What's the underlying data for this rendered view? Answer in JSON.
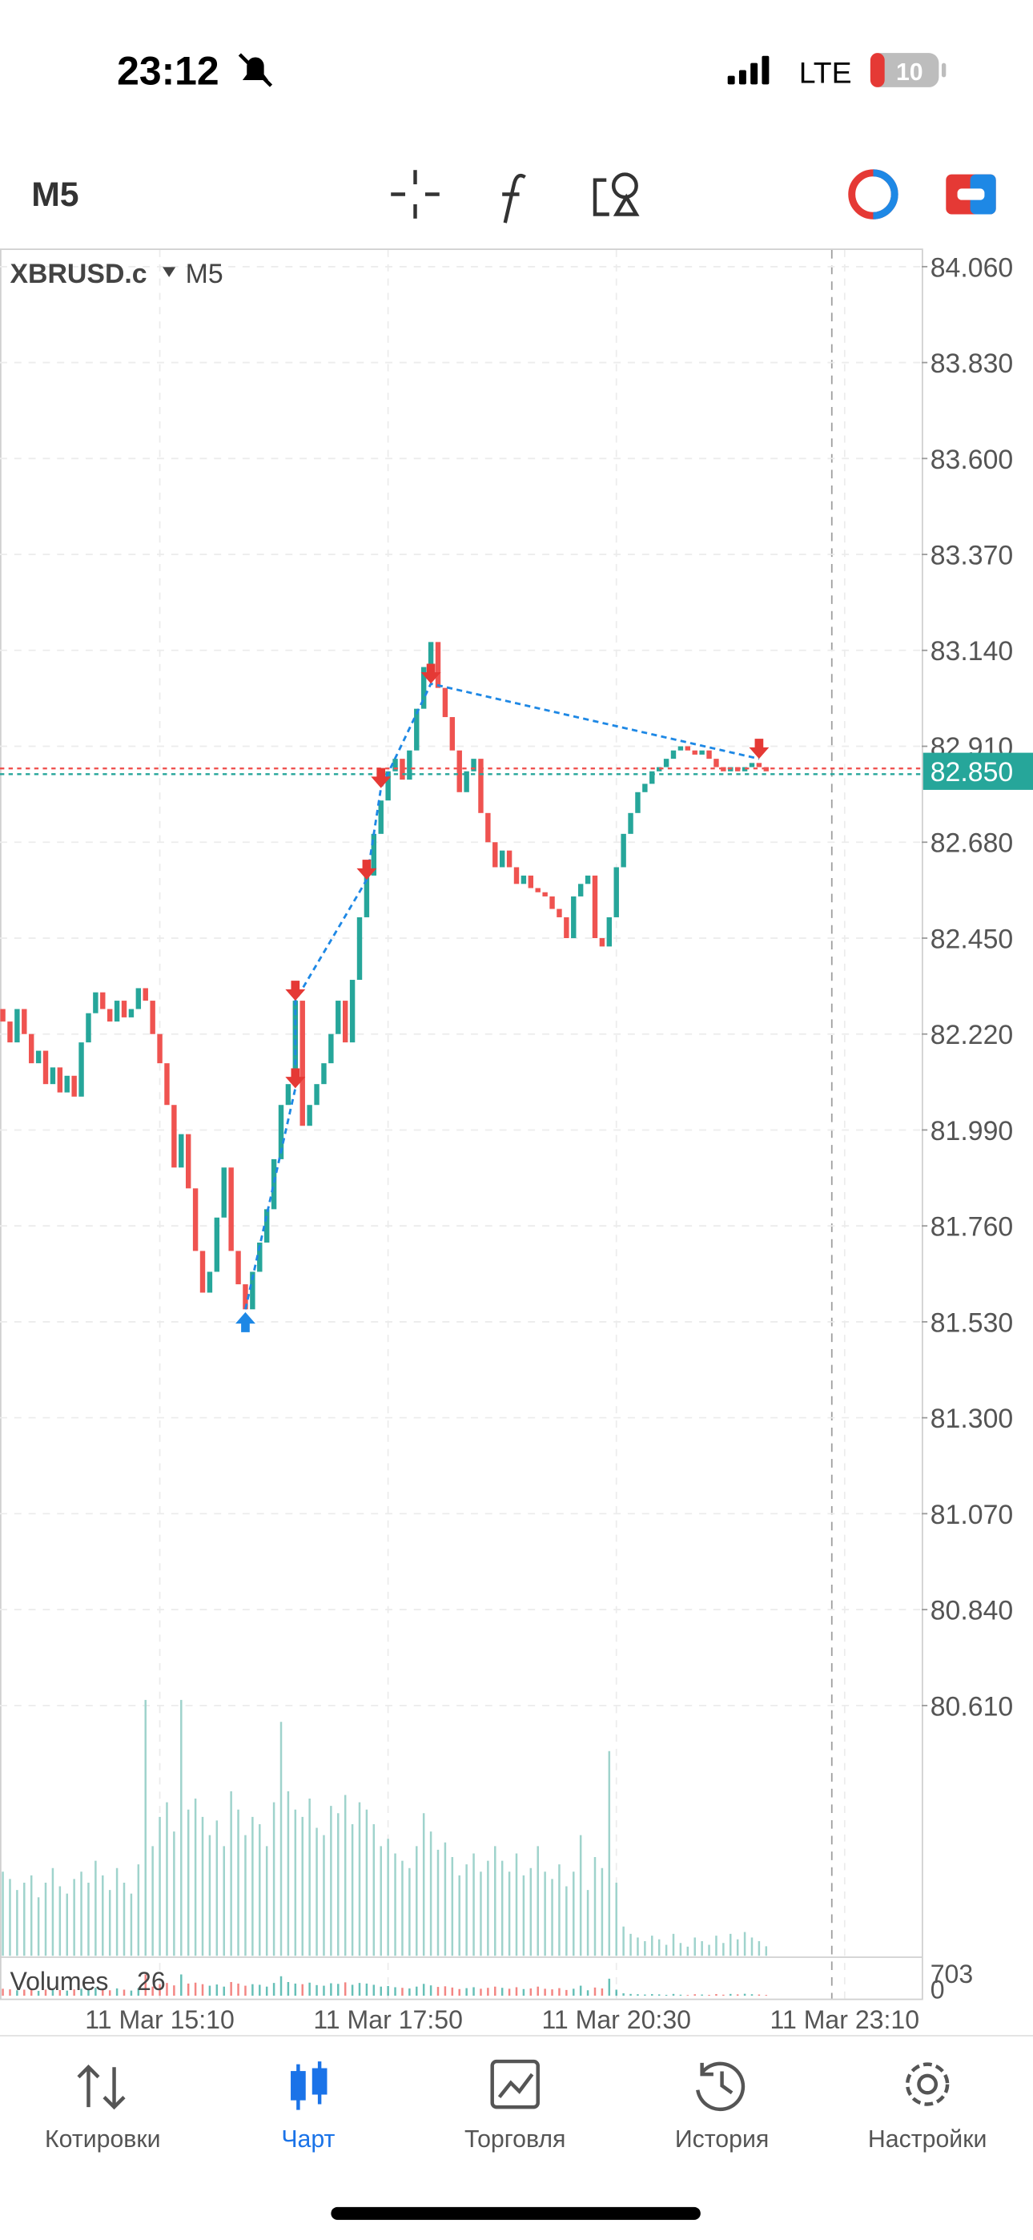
{
  "status_bar": {
    "time": "23:12",
    "network": "LTE",
    "battery": "10"
  },
  "toolbar": {
    "timeframe": "M5"
  },
  "chart_data": {
    "type": "candlestick",
    "symbol": "XBRUSD.c",
    "timeframe": "M5",
    "up_color": "#26a69a",
    "down_color": "#ef5350",
    "open": [
      82.28,
      82.25,
      82.2,
      82.28,
      82.22,
      82.15,
      82.18,
      82.1,
      82.14,
      82.08,
      82.12,
      82.07,
      82.2,
      82.27,
      82.32,
      82.28,
      82.25,
      82.3,
      82.26,
      82.28,
      82.33,
      82.3,
      82.22,
      82.15,
      82.05,
      81.9,
      81.98,
      81.85,
      81.7,
      81.6,
      81.65,
      81.78,
      81.9,
      81.7,
      81.62,
      81.56,
      81.65,
      81.72,
      81.8,
      81.92,
      82.05,
      82.1,
      82.3,
      82.0,
      82.05,
      82.1,
      82.15,
      82.22,
      82.3,
      82.2,
      82.35,
      82.5,
      82.6,
      82.7,
      82.78,
      82.85,
      82.88,
      82.83,
      82.9,
      83.0,
      83.1,
      83.16,
      83.05,
      82.98,
      82.9,
      82.8,
      82.85,
      82.88,
      82.75,
      82.68,
      82.62,
      82.66,
      82.62,
      82.58,
      82.6,
      82.57,
      82.56,
      82.55,
      82.52,
      82.5,
      82.45,
      82.55,
      82.58,
      82.6,
      82.45,
      82.43,
      82.5,
      82.62,
      82.7,
      82.75,
      82.8,
      82.82,
      82.85,
      82.86,
      82.88,
      82.9,
      82.91,
      82.9,
      82.89,
      82.9,
      82.88,
      82.86,
      82.85,
      82.86,
      82.85,
      82.86,
      82.87,
      82.86
    ],
    "close": [
      82.25,
      82.2,
      82.28,
      82.22,
      82.15,
      82.18,
      82.1,
      82.14,
      82.08,
      82.12,
      82.07,
      82.2,
      82.27,
      82.32,
      82.28,
      82.25,
      82.3,
      82.26,
      82.28,
      82.33,
      82.3,
      82.22,
      82.15,
      82.05,
      81.9,
      81.98,
      81.85,
      81.7,
      81.6,
      81.65,
      81.78,
      81.9,
      81.7,
      81.62,
      81.56,
      81.65,
      81.72,
      81.8,
      81.92,
      82.05,
      82.1,
      82.3,
      82.0,
      82.05,
      82.1,
      82.15,
      82.22,
      82.3,
      82.2,
      82.35,
      82.5,
      82.6,
      82.7,
      82.78,
      82.85,
      82.88,
      82.83,
      82.9,
      83.0,
      83.1,
      83.16,
      83.05,
      82.98,
      82.9,
      82.8,
      82.85,
      82.88,
      82.75,
      82.68,
      82.62,
      82.66,
      82.62,
      82.58,
      82.6,
      82.57,
      82.56,
      82.55,
      82.52,
      82.5,
      82.45,
      82.55,
      82.58,
      82.6,
      82.45,
      82.43,
      82.5,
      82.62,
      82.7,
      82.75,
      82.8,
      82.82,
      82.85,
      82.86,
      82.88,
      82.9,
      82.91,
      82.9,
      82.89,
      82.9,
      82.88,
      82.86,
      82.85,
      82.86,
      82.85,
      82.86,
      82.87,
      82.86,
      82.85
    ],
    "ylim": [
      80.01,
      84.1
    ],
    "yticks": [
      {
        "value": 84.06,
        "label": "84.060"
      },
      {
        "value": 83.83,
        "label": "83.830"
      },
      {
        "value": 83.6,
        "label": "83.600"
      },
      {
        "value": 83.37,
        "label": "83.370"
      },
      {
        "value": 83.14,
        "label": "83.140"
      },
      {
        "value": 82.91,
        "label": "82.910"
      },
      {
        "value": 82.68,
        "label": "82.680"
      },
      {
        "value": 82.45,
        "label": "82.450"
      },
      {
        "value": 82.22,
        "label": "82.220"
      },
      {
        "value": 81.99,
        "label": "81.990"
      },
      {
        "value": 81.76,
        "label": "81.760"
      },
      {
        "value": 81.53,
        "label": "81.530"
      },
      {
        "value": 81.3,
        "label": "81.300"
      },
      {
        "value": 81.07,
        "label": "81.070"
      },
      {
        "value": 80.84,
        "label": "80.840"
      },
      {
        "value": 80.61,
        "label": "80.610"
      }
    ],
    "xlim": [
      -0.4,
      128.8
    ],
    "xticks": [
      {
        "value": 22,
        "label": "11 Mar 15:10"
      },
      {
        "value": 54,
        "label": "11 Mar 17:50"
      },
      {
        "value": 86,
        "label": "11 Mar 20:30"
      },
      {
        "value": 118,
        "label": "11 Mar 23:10"
      }
    ],
    "grid": true,
    "last_price": {
      "value": 82.85,
      "label": "82.850"
    },
    "trades": [
      {
        "side": "buy",
        "index": 34,
        "price": 81.56
      },
      {
        "side": "sell",
        "index": 41,
        "price": 82.09
      },
      {
        "side": "sell",
        "index": 41,
        "price": 82.3
      },
      {
        "side": "sell",
        "index": 51,
        "price": 82.59
      },
      {
        "side": "sell",
        "index": 53,
        "price": 82.81
      },
      {
        "side": "sell",
        "index": 60,
        "price": 83.06
      },
      {
        "side": "sell",
        "index": 106,
        "price": 82.88
      }
    ],
    "volumes": {
      "name": "Volumes",
      "ylim": [
        0,
        703
      ],
      "yticks": [
        703,
        0
      ],
      "values": [
        230,
        210,
        180,
        200,
        220,
        160,
        200,
        240,
        190,
        170,
        210,
        230,
        200,
        260,
        220,
        180,
        240,
        200,
        170,
        250,
        700,
        300,
        380,
        420,
        340,
        700,
        400,
        430,
        380,
        330,
        370,
        300,
        450,
        400,
        330,
        380,
        360,
        300,
        420,
        640,
        450,
        400,
        380,
        430,
        350,
        330,
        410,
        390,
        440,
        360,
        420,
        400,
        360,
        300,
        320,
        280,
        260,
        240,
        300,
        390,
        340,
        290,
        310,
        270,
        220,
        250,
        280,
        230,
        260,
        300,
        260,
        230,
        280,
        220,
        240,
        300,
        230,
        210,
        250,
        190,
        230,
        330,
        180,
        270,
        240,
        560,
        200,
        80,
        60,
        50,
        40,
        55,
        45,
        30,
        60,
        35,
        25,
        50,
        40,
        30,
        55,
        35,
        60,
        45,
        65,
        50,
        40,
        26
      ]
    }
  },
  "nav": {
    "items": [
      "Котировки",
      "Чарт",
      "Торговля",
      "История",
      "Настройки"
    ],
    "active": 1
  }
}
